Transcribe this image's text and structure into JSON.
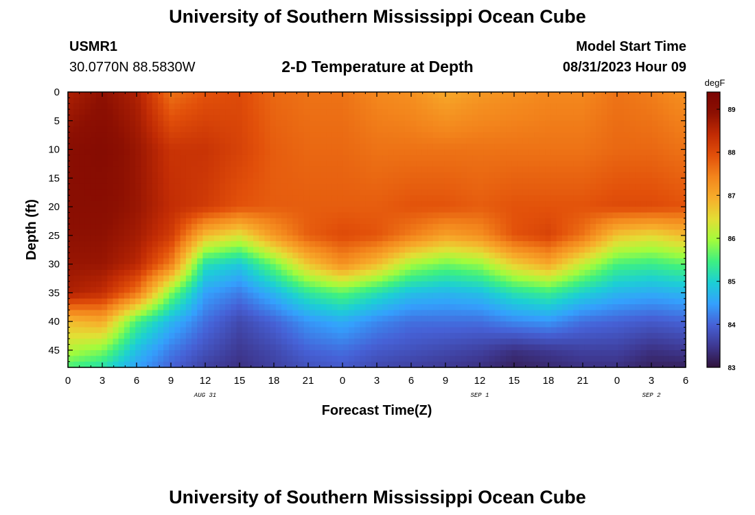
{
  "header": {
    "title": "University of Southern Mississippi Ocean Cube",
    "station": "USMR1",
    "coords": "30.0770N  88.5830W",
    "subtitle": "2-D Temperature at Depth",
    "model_label": "Model Start Time",
    "model_time": "08/31/2023 Hour 09"
  },
  "footer": {
    "title": "University of Southern Mississippi Ocean Cube"
  },
  "chart_data": {
    "type": "heatmap",
    "title": "2-D Temperature at Depth",
    "xlabel": "Forecast Time(Z)",
    "ylabel": "Depth (ft)",
    "x_hours_range": [
      0,
      54
    ],
    "x_tick_labels": [
      "0",
      "3",
      "6",
      "9",
      "12",
      "15",
      "18",
      "21",
      "0",
      "3",
      "6",
      "9",
      "12",
      "15",
      "18",
      "21",
      "0",
      "3",
      "6"
    ],
    "date_labels": [
      {
        "label": "AUG 31",
        "hour": 12
      },
      {
        "label": "SEP 1",
        "hour": 36
      },
      {
        "label": "SEP 2",
        "hour": 51
      }
    ],
    "y_range": [
      0,
      48
    ],
    "y_ticks": [
      0,
      5,
      10,
      15,
      20,
      25,
      30,
      35,
      40,
      45
    ],
    "colorbar": {
      "unit": "degF",
      "min": 83,
      "max": 89.4,
      "ticks": [
        83,
        84,
        85,
        86,
        87,
        88,
        89
      ]
    },
    "depth_levels_ft": [
      0,
      10,
      20,
      25,
      30,
      35,
      40,
      45,
      48
    ],
    "time_hours": [
      0,
      3,
      6,
      9,
      12,
      15,
      18,
      21,
      24,
      27,
      30,
      33,
      36,
      39,
      42,
      45,
      48,
      51,
      54
    ],
    "temperature_degF": [
      [
        88.6,
        88.9,
        88.6,
        87.6,
        87.9,
        88.0,
        87.7,
        87.6,
        87.6,
        87.4,
        87.3,
        87.0,
        87.2,
        87.3,
        87.4,
        87.4,
        87.6,
        87.5,
        87.3
      ],
      [
        89.0,
        89.1,
        88.8,
        88.3,
        88.3,
        88.1,
        87.8,
        87.7,
        87.7,
        87.6,
        87.6,
        87.6,
        87.6,
        87.6,
        87.6,
        87.6,
        87.7,
        87.7,
        87.6
      ],
      [
        89.0,
        89.0,
        88.8,
        88.4,
        88.2,
        87.9,
        87.8,
        87.8,
        87.8,
        87.8,
        87.9,
        87.9,
        87.8,
        87.9,
        87.9,
        87.9,
        88.0,
        88.0,
        87.9
      ],
      [
        88.9,
        88.9,
        88.7,
        88.2,
        86.8,
        86.4,
        87.2,
        87.8,
        88.0,
        87.9,
        87.5,
        87.1,
        87.3,
        87.9,
        88.1,
        87.6,
        86.7,
        86.5,
        86.8
      ],
      [
        88.8,
        88.8,
        88.5,
        87.5,
        85.2,
        84.9,
        85.7,
        86.7,
        87.3,
        86.8,
        86.0,
        85.7,
        85.9,
        86.6,
        87.0,
        86.2,
        85.5,
        85.4,
        85.6
      ],
      [
        88.6,
        88.4,
        87.6,
        85.8,
        84.5,
        84.2,
        84.7,
        85.3,
        85.6,
        85.2,
        84.8,
        84.7,
        84.8,
        85.2,
        85.4,
        85.0,
        84.7,
        84.6,
        84.7
      ],
      [
        86.8,
        87.0,
        85.5,
        84.7,
        84.1,
        83.7,
        84.0,
        84.4,
        84.6,
        84.3,
        84.1,
        84.1,
        84.1,
        84.3,
        84.4,
        84.1,
        84.0,
        83.9,
        84.0
      ],
      [
        86.1,
        85.8,
        84.8,
        84.2,
        83.8,
        83.5,
        83.7,
        84.0,
        84.1,
        83.9,
        83.8,
        83.7,
        83.6,
        83.4,
        83.5,
        83.6,
        83.6,
        83.4,
        83.5
      ],
      [
        85.5,
        85.2,
        84.5,
        84.0,
        83.6,
        83.4,
        83.6,
        83.8,
        83.9,
        83.7,
        83.6,
        83.5,
        83.4,
        83.2,
        83.3,
        83.4,
        83.4,
        83.2,
        83.2
      ]
    ]
  },
  "colors": {
    "colormap": [
      "#30123b",
      "#3e3891",
      "#4661d6",
      "#34a0fd",
      "#1ccfd5",
      "#3df082",
      "#a2fc3c",
      "#e3de35",
      "#f7ad2b",
      "#f3851c",
      "#e2500a",
      "#c12b04",
      "#8d1002",
      "#7a0403"
    ]
  }
}
